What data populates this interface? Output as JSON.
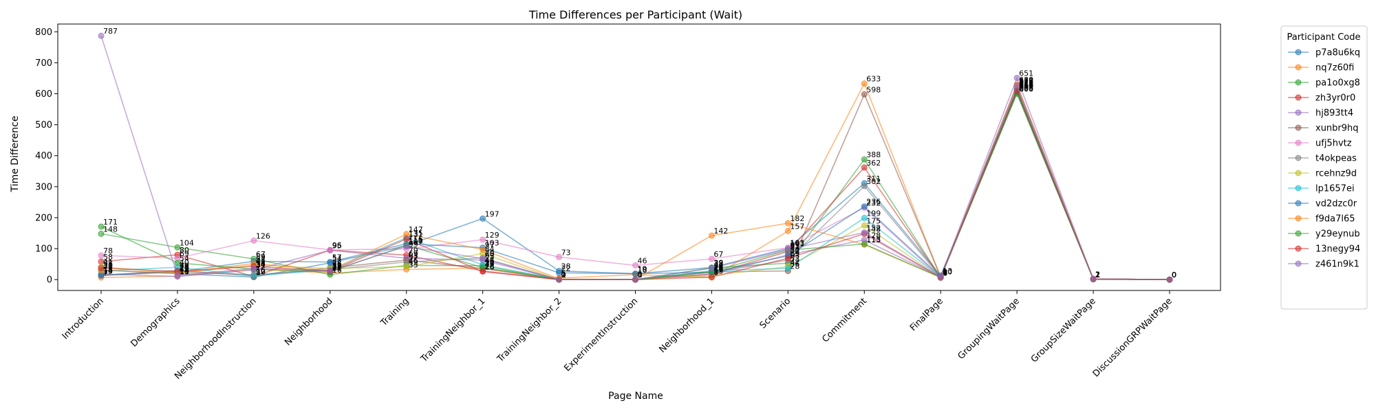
{
  "chart_data": {
    "type": "line",
    "title": "Time Differences per Participant (Wait)",
    "xlabel": "Page Name",
    "ylabel": "Time Difference",
    "ylim": [
      -35,
      825
    ],
    "yticks": [
      0,
      100,
      200,
      300,
      400,
      500,
      600,
      700,
      800
    ],
    "grid": false,
    "legend_title": "Participant Code",
    "legend_position": "outside-top-right",
    "categories": [
      "Introduction",
      "Demographics",
      "NeighborhoodInstruction",
      "Neighborhood",
      "Training",
      "TrainingNeighbor_1",
      "TrainingNeighbor_2",
      "ExperimentInstruction",
      "Neighborhood_1",
      "Scenario",
      "Commitment",
      "FinalPage",
      "GroupingWaitPage",
      "GroupSizeWaitPage",
      "DiscussionGRPWaitPage"
    ],
    "series": [
      {
        "name": "p7a8u6kq",
        "color": "#1f77b4",
        "values": [
          31,
          19,
          8,
          54,
          110,
          197,
          28,
          19,
          39,
          101,
          311,
          13,
          605,
          2,
          0
        ]
      },
      {
        "name": "nq7z60fi",
        "color": "#ff7f0e",
        "values": [
          7,
          11,
          34,
          21,
          33,
          37,
          5,
          16,
          7,
          157,
          633,
          8,
          610,
          2,
          0
        ]
      },
      {
        "name": "pa1o0xg8",
        "color": "#2ca02c",
        "values": [
          148,
          104,
          67,
          16,
          46,
          45,
          0,
          0,
          38,
          53,
          388,
          7,
          603,
          2,
          0
        ]
      },
      {
        "name": "zh3yr0r0",
        "color": "#d62728",
        "values": [
          58,
          80,
          10,
          95,
          79,
          28,
          0,
          0,
          18,
          91,
          362,
          6,
          615,
          2,
          0
        ]
      },
      {
        "name": "hj893tt4",
        "color": "#9467bd",
        "values": [
          18,
          10,
          31,
          95,
          69,
          63,
          0,
          0,
          17,
          80,
          128,
          8,
          651,
          1,
          0
        ]
      },
      {
        "name": "xunbr9hq",
        "color": "#8c564b",
        "values": [
          14,
          30,
          12,
          38,
          63,
          36,
          0,
          1,
          25,
          28,
          598,
          9,
          622,
          2,
          0
        ]
      },
      {
        "name": "ufj5hvtz",
        "color": "#e377c2",
        "values": [
          78,
          69,
          126,
          96,
          99,
          129,
          73,
          46,
          67,
          103,
          232,
          6,
          625,
          2,
          0
        ]
      },
      {
        "name": "t4okpeas",
        "color": "#7f7f7f",
        "values": [
          15,
          24,
          16,
          32,
          57,
          70,
          0,
          0,
          23,
          63,
          302,
          8,
          618,
          2,
          0
        ]
      },
      {
        "name": "rcehnz9d",
        "color": "#bcbd22",
        "values": [
          41,
          21,
          47,
          36,
          42,
          84,
          0,
          0,
          13,
          42,
          175,
          7,
          620,
          2,
          0
        ]
      },
      {
        "name": "lp1657ei",
        "color": "#17becf",
        "values": [
          28,
          40,
          12,
          32,
          135,
          48,
          1,
          0,
          29,
          36,
          199,
          8,
          609,
          2,
          0
        ]
      },
      {
        "name": "vd2dzc0r",
        "color": "#1f77b4",
        "values": [
          13,
          26,
          59,
          57,
          116,
          103,
          22,
          19,
          24,
          77,
          236,
          10,
          612,
          2,
          0
        ]
      },
      {
        "name": "f9da7l65",
        "color": "#ff7f0e",
        "values": [
          30,
          22,
          52,
          29,
          147,
          97,
          2,
          0,
          142,
          182,
          113,
          7,
          630,
          2,
          0
        ]
      },
      {
        "name": "y29eynub",
        "color": "#2ca02c",
        "values": [
          171,
          54,
          34,
          25,
          111,
          39,
          0,
          0,
          26,
          95,
          115,
          7,
          600,
          1,
          0
        ]
      },
      {
        "name": "13negy94",
        "color": "#d62728",
        "values": [
          38,
          26,
          43,
          27,
          131,
          26,
          0,
          0,
          8,
          69,
          148,
          7,
          609,
          2,
          0
        ]
      },
      {
        "name": "z461n9k1",
        "color": "#9467bd",
        "values": [
          787,
          14,
          36,
          29,
          107,
          68,
          0,
          0,
          37,
          97,
          152,
          8,
          627,
          2,
          0
        ]
      }
    ]
  }
}
